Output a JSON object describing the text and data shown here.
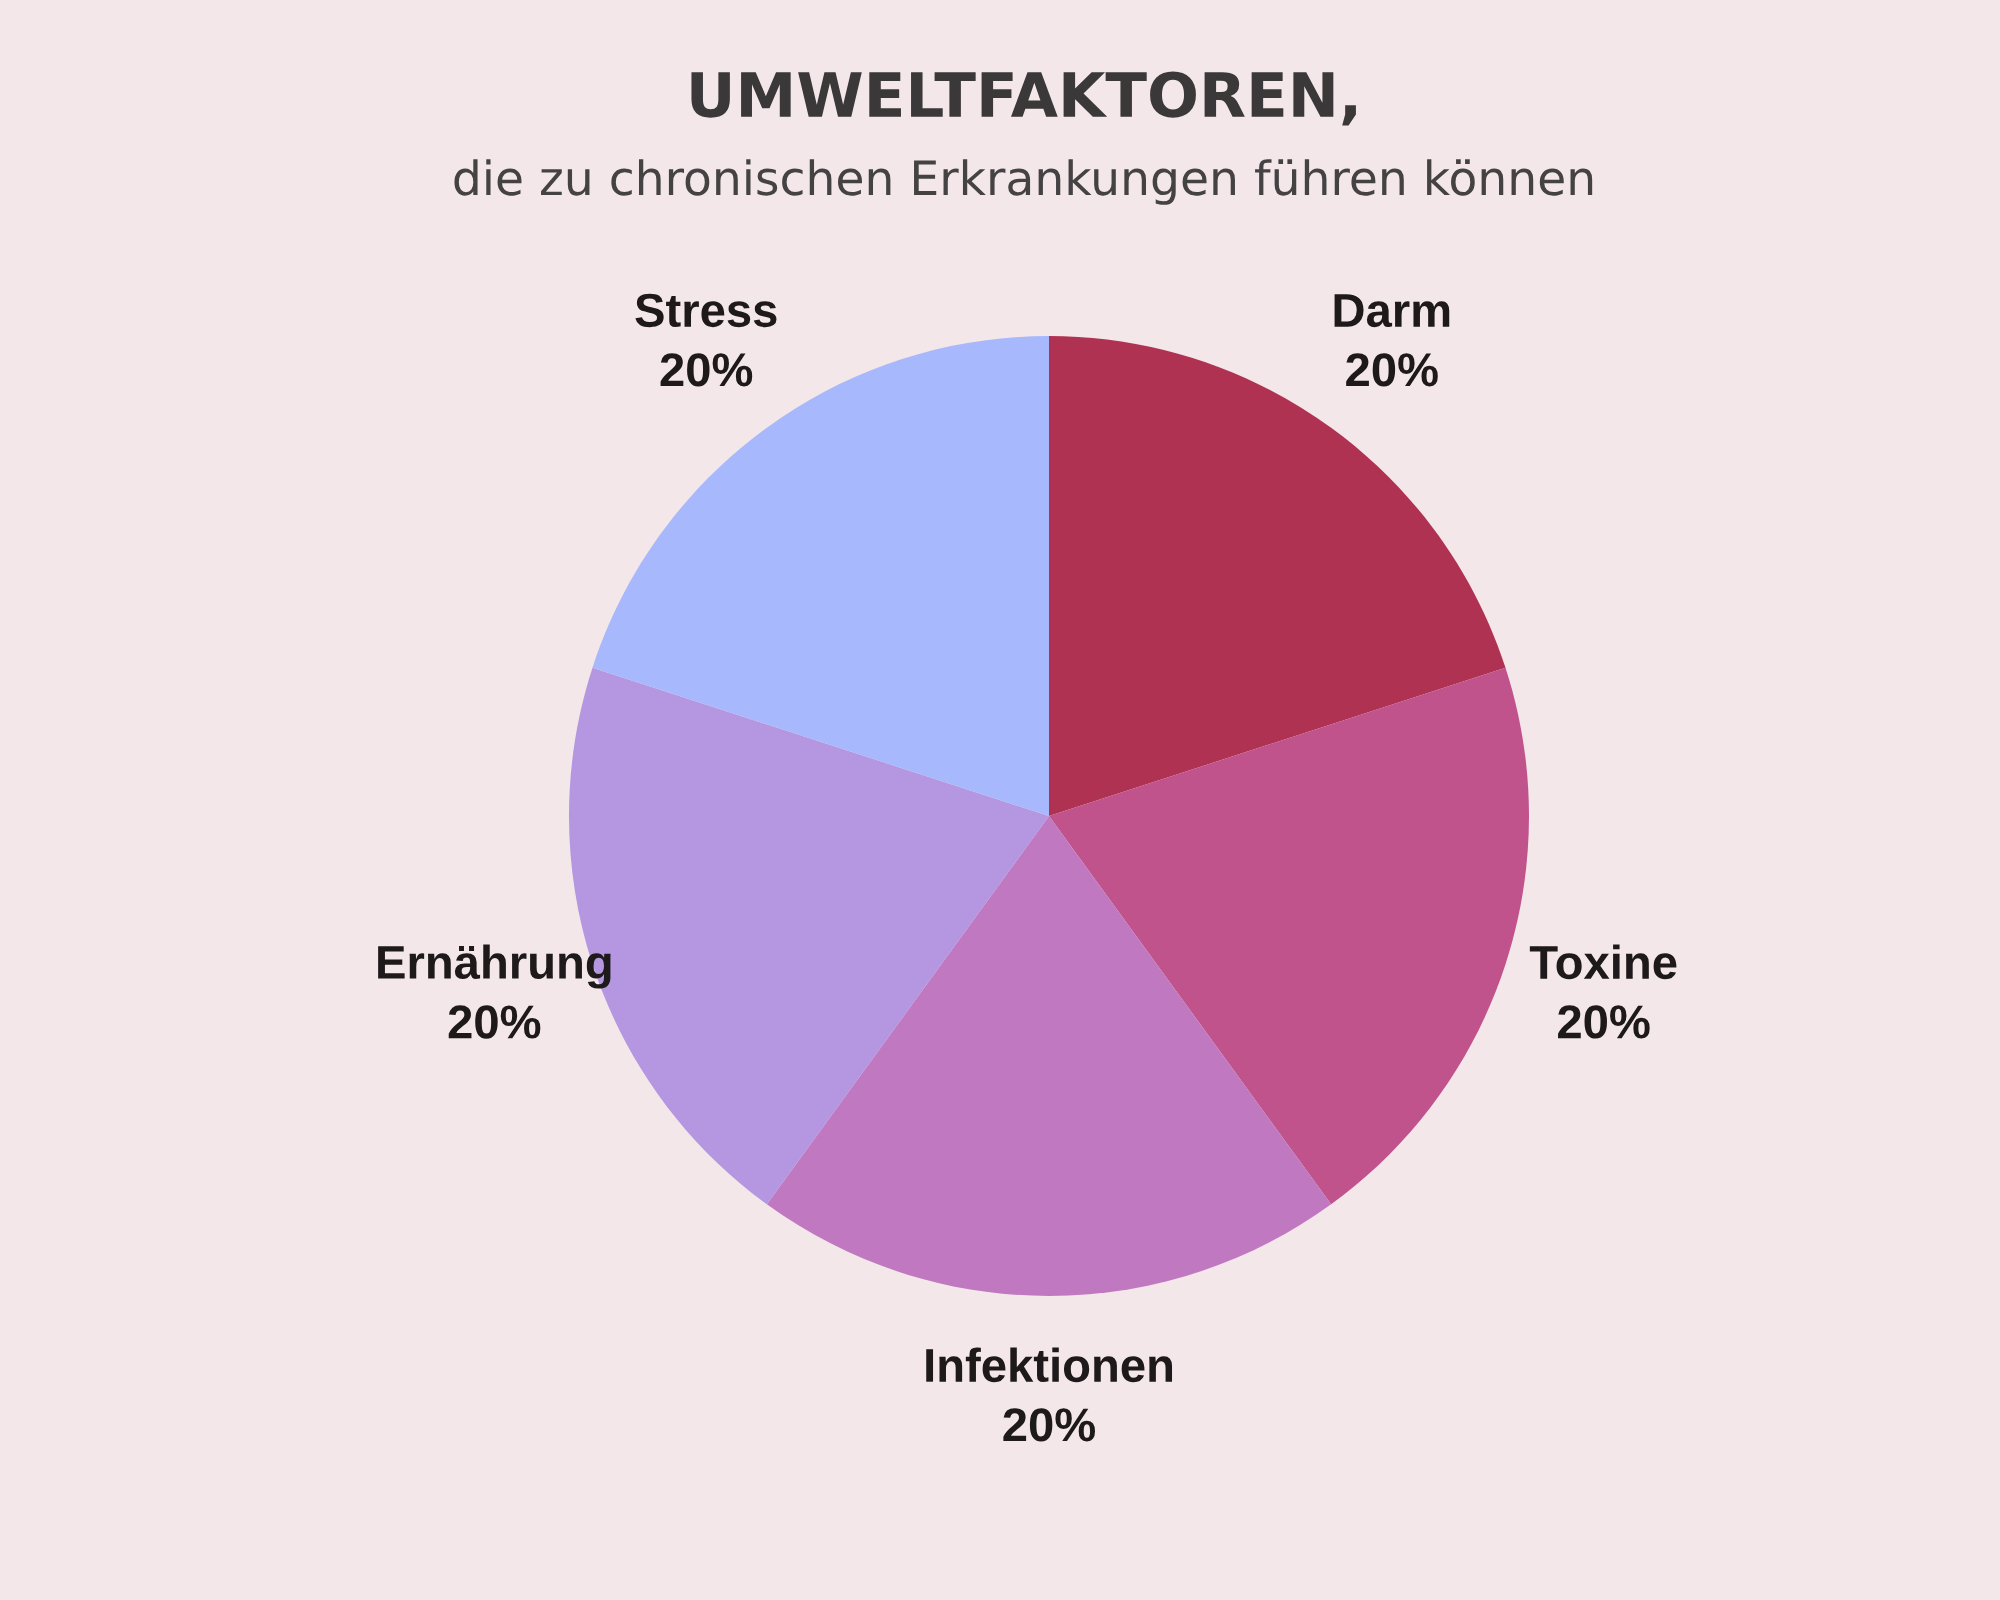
{
  "chart_data": {
    "type": "pie",
    "title": "UMWELTFAKTOREN,",
    "subtitle": "die zu chronischen Erkrankungen führen können",
    "categories": [
      "Darm",
      "Toxine",
      "Infektionen",
      "Ernährung",
      "Stress"
    ],
    "values": [
      20,
      20,
      20,
      20,
      20
    ],
    "value_labels": [
      "20%",
      "20%",
      "20%",
      "20%",
      "20%"
    ],
    "colors": [
      "#b03252",
      "#c0538c",
      "#c078c0",
      "#b497e0",
      "#a8b8fc"
    ]
  }
}
